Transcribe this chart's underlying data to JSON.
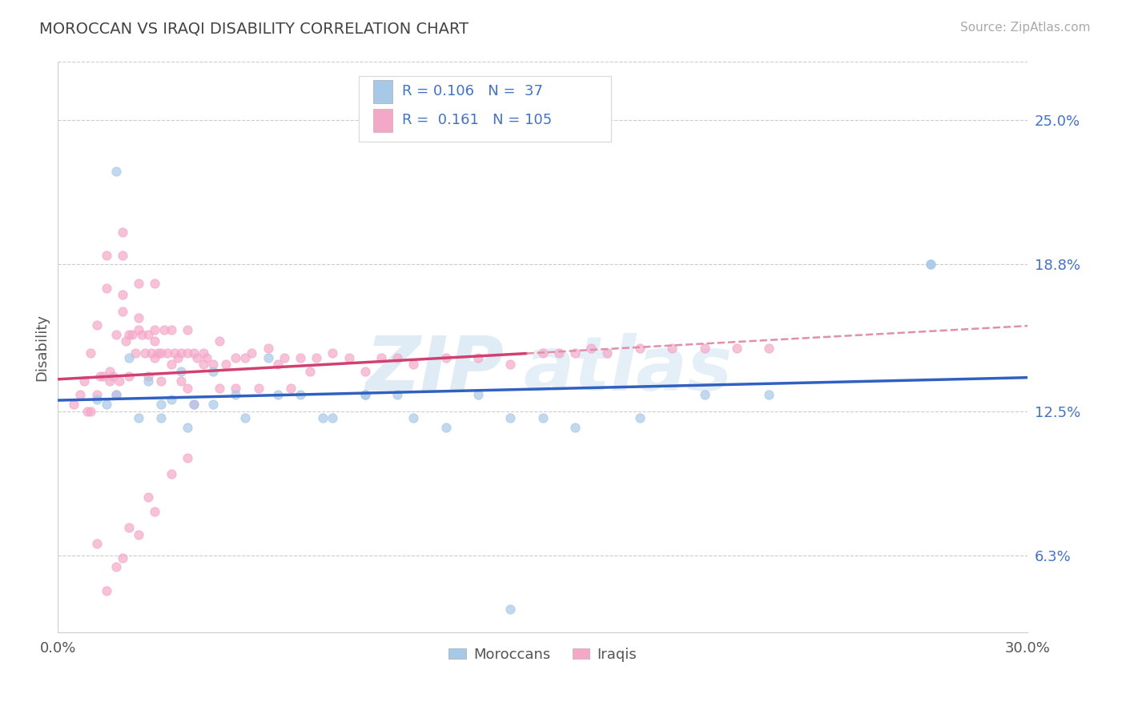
{
  "title": "MOROCCAN VS IRAQI DISABILITY CORRELATION CHART",
  "source": "Source: ZipAtlas.com",
  "ylabel": "Disability",
  "ylabel_right_labels": [
    "6.3%",
    "12.5%",
    "18.8%",
    "25.0%"
  ],
  "ylabel_right_values": [
    0.063,
    0.125,
    0.188,
    0.25
  ],
  "xmin": 0.0,
  "xmax": 0.3,
  "ymin": 0.03,
  "ymax": 0.275,
  "blue_scatter_color": "#a8c8e8",
  "pink_scatter_color": "#f4a8c8",
  "trend_blue": "#3060c0",
  "trend_pink": "#d04070",
  "dash_color": "#e090a8",
  "legend_box_color": "#f0f4ff",
  "blue_legend_box": "#a8c8e8",
  "pink_legend_box": "#f4a8c8",
  "moroccan_x": [
    0.012,
    0.018,
    0.022,
    0.028,
    0.032,
    0.035,
    0.038,
    0.042,
    0.048,
    0.055,
    0.065,
    0.075,
    0.085,
    0.095,
    0.105,
    0.12,
    0.14,
    0.16,
    0.18,
    0.2,
    0.22,
    0.27,
    0.015,
    0.025,
    0.032,
    0.04,
    0.048,
    0.058,
    0.068,
    0.082,
    0.095,
    0.11,
    0.13,
    0.15,
    0.27,
    0.018,
    0.14
  ],
  "moroccan_y": [
    0.13,
    0.228,
    0.148,
    0.138,
    0.128,
    0.13,
    0.142,
    0.128,
    0.142,
    0.132,
    0.148,
    0.132,
    0.122,
    0.132,
    0.132,
    0.118,
    0.122,
    0.118,
    0.122,
    0.132,
    0.132,
    0.188,
    0.128,
    0.122,
    0.122,
    0.118,
    0.128,
    0.122,
    0.132,
    0.122,
    0.132,
    0.122,
    0.132,
    0.122,
    0.188,
    0.132,
    0.04
  ],
  "iraqi_x": [
    0.005,
    0.007,
    0.008,
    0.009,
    0.01,
    0.01,
    0.012,
    0.012,
    0.013,
    0.014,
    0.015,
    0.015,
    0.016,
    0.016,
    0.017,
    0.018,
    0.018,
    0.019,
    0.02,
    0.02,
    0.02,
    0.021,
    0.022,
    0.022,
    0.023,
    0.024,
    0.025,
    0.025,
    0.026,
    0.027,
    0.028,
    0.028,
    0.029,
    0.03,
    0.03,
    0.03,
    0.031,
    0.032,
    0.032,
    0.033,
    0.034,
    0.035,
    0.035,
    0.036,
    0.037,
    0.038,
    0.038,
    0.04,
    0.04,
    0.04,
    0.042,
    0.043,
    0.045,
    0.045,
    0.046,
    0.048,
    0.05,
    0.05,
    0.052,
    0.055,
    0.055,
    0.058,
    0.06,
    0.062,
    0.065,
    0.068,
    0.07,
    0.072,
    0.075,
    0.078,
    0.08,
    0.085,
    0.09,
    0.095,
    0.1,
    0.105,
    0.11,
    0.12,
    0.13,
    0.14,
    0.15,
    0.155,
    0.16,
    0.165,
    0.17,
    0.18,
    0.19,
    0.2,
    0.21,
    0.22,
    0.012,
    0.018,
    0.022,
    0.028,
    0.035,
    0.042,
    0.015,
    0.02,
    0.025,
    0.03,
    0.04,
    0.02,
    0.025,
    0.03
  ],
  "iraqi_y": [
    0.128,
    0.132,
    0.138,
    0.125,
    0.125,
    0.15,
    0.162,
    0.132,
    0.14,
    0.14,
    0.192,
    0.178,
    0.142,
    0.138,
    0.14,
    0.158,
    0.132,
    0.138,
    0.202,
    0.192,
    0.168,
    0.155,
    0.158,
    0.14,
    0.158,
    0.15,
    0.18,
    0.16,
    0.158,
    0.15,
    0.158,
    0.14,
    0.15,
    0.18,
    0.16,
    0.148,
    0.15,
    0.15,
    0.138,
    0.16,
    0.15,
    0.16,
    0.145,
    0.15,
    0.148,
    0.15,
    0.138,
    0.16,
    0.15,
    0.135,
    0.15,
    0.148,
    0.15,
    0.145,
    0.148,
    0.145,
    0.155,
    0.135,
    0.145,
    0.148,
    0.135,
    0.148,
    0.15,
    0.135,
    0.152,
    0.145,
    0.148,
    0.135,
    0.148,
    0.142,
    0.148,
    0.15,
    0.148,
    0.142,
    0.148,
    0.148,
    0.145,
    0.148,
    0.148,
    0.145,
    0.15,
    0.15,
    0.15,
    0.152,
    0.15,
    0.152,
    0.152,
    0.152,
    0.152,
    0.152,
    0.068,
    0.058,
    0.075,
    0.088,
    0.098,
    0.128,
    0.048,
    0.062,
    0.072,
    0.082,
    0.105,
    0.175,
    0.165,
    0.155
  ],
  "pink_trend_x_end": 0.145,
  "blue_trend_x_start": 0.0,
  "blue_trend_x_end": 0.3
}
